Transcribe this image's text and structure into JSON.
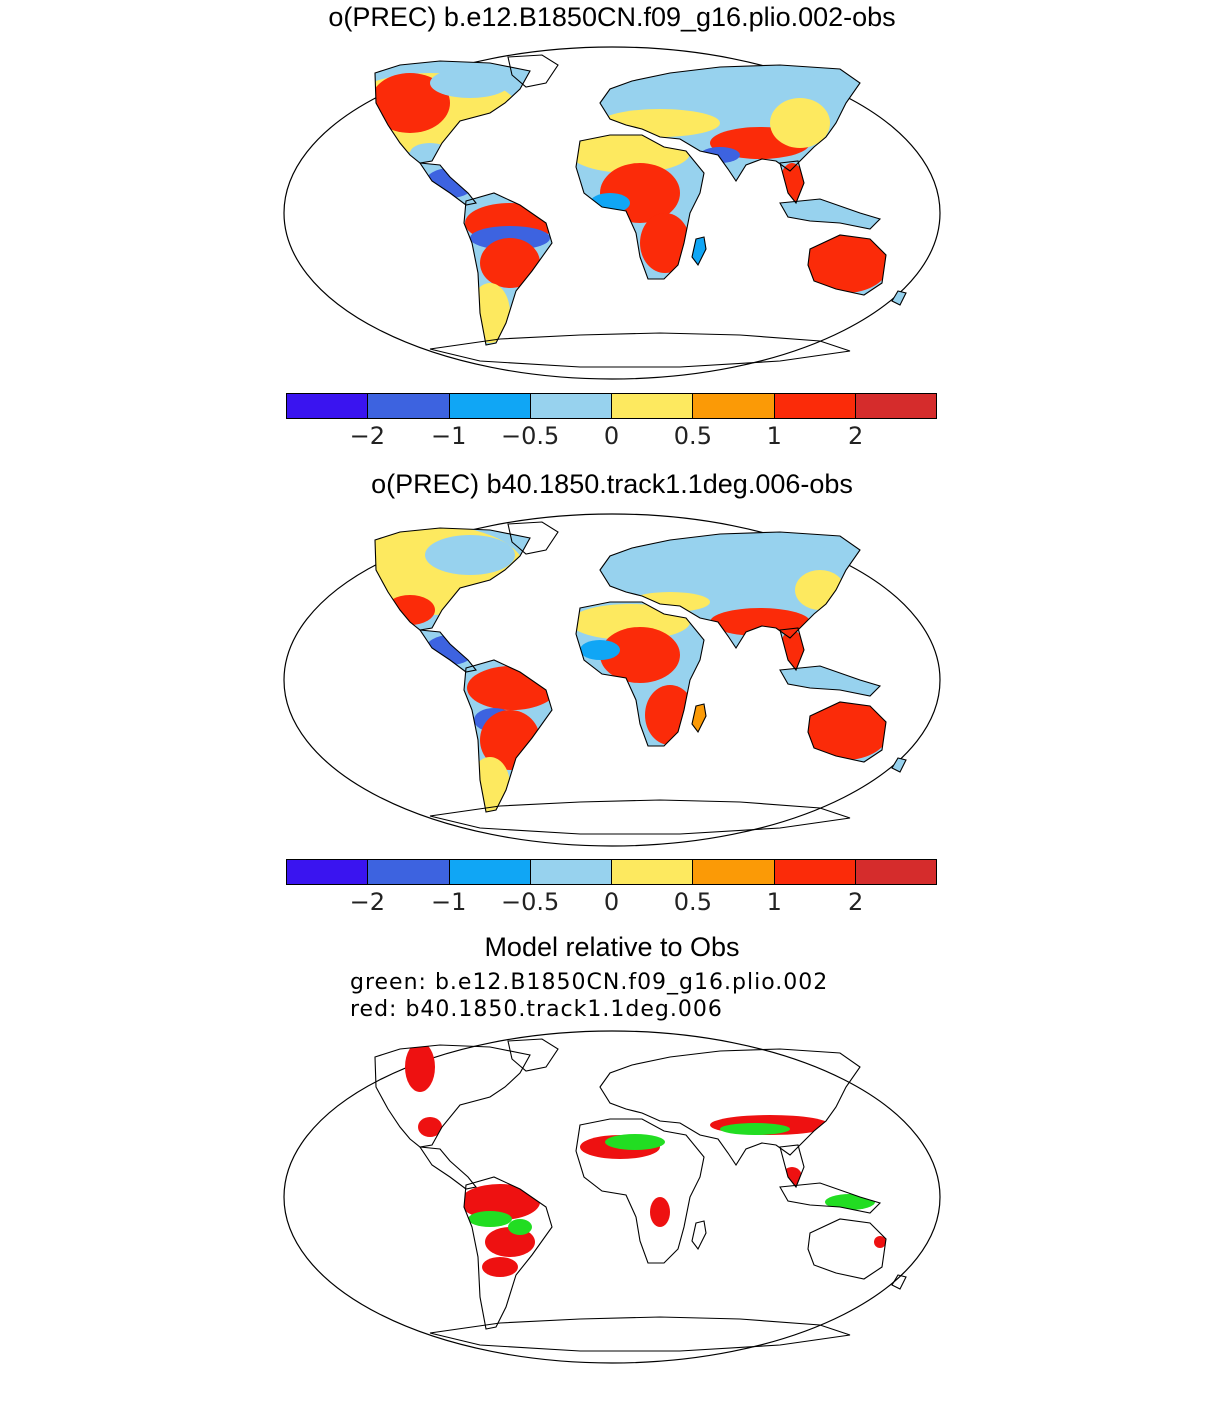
{
  "panels": [
    {
      "title": "o(PREC) b.e12.B1850CN.f09_g16.plio.002-obs",
      "colorbar": {
        "colors": [
          "#3a14f0",
          "#3d63e0",
          "#10a6f5",
          "#97d2ee",
          "#fde95f",
          "#fb9a06",
          "#fb2b09",
          "#d52c2c"
        ],
        "tick_labels": [
          "−2",
          "−1",
          "−0.5",
          "0",
          "0.5",
          "1",
          "2"
        ]
      }
    },
    {
      "title": "o(PREC) b40.1850.track1.1deg.006-obs",
      "colorbar": {
        "colors": [
          "#3a14f0",
          "#3d63e0",
          "#10a6f5",
          "#97d2ee",
          "#fde95f",
          "#fb9a06",
          "#fb2b09",
          "#d52c2c"
        ],
        "tick_labels": [
          "−2",
          "−1",
          "−0.5",
          "0",
          "0.5",
          "1",
          "2"
        ]
      }
    },
    {
      "title": "Model relative to Obs",
      "legend": {
        "green": "green: b.e12.B1850CN.f09_g16.plio.002",
        "red": "red: b40.1850.track1.1deg.006"
      },
      "colors": {
        "green": "#22dd22",
        "red": "#ee1111"
      }
    }
  ]
}
